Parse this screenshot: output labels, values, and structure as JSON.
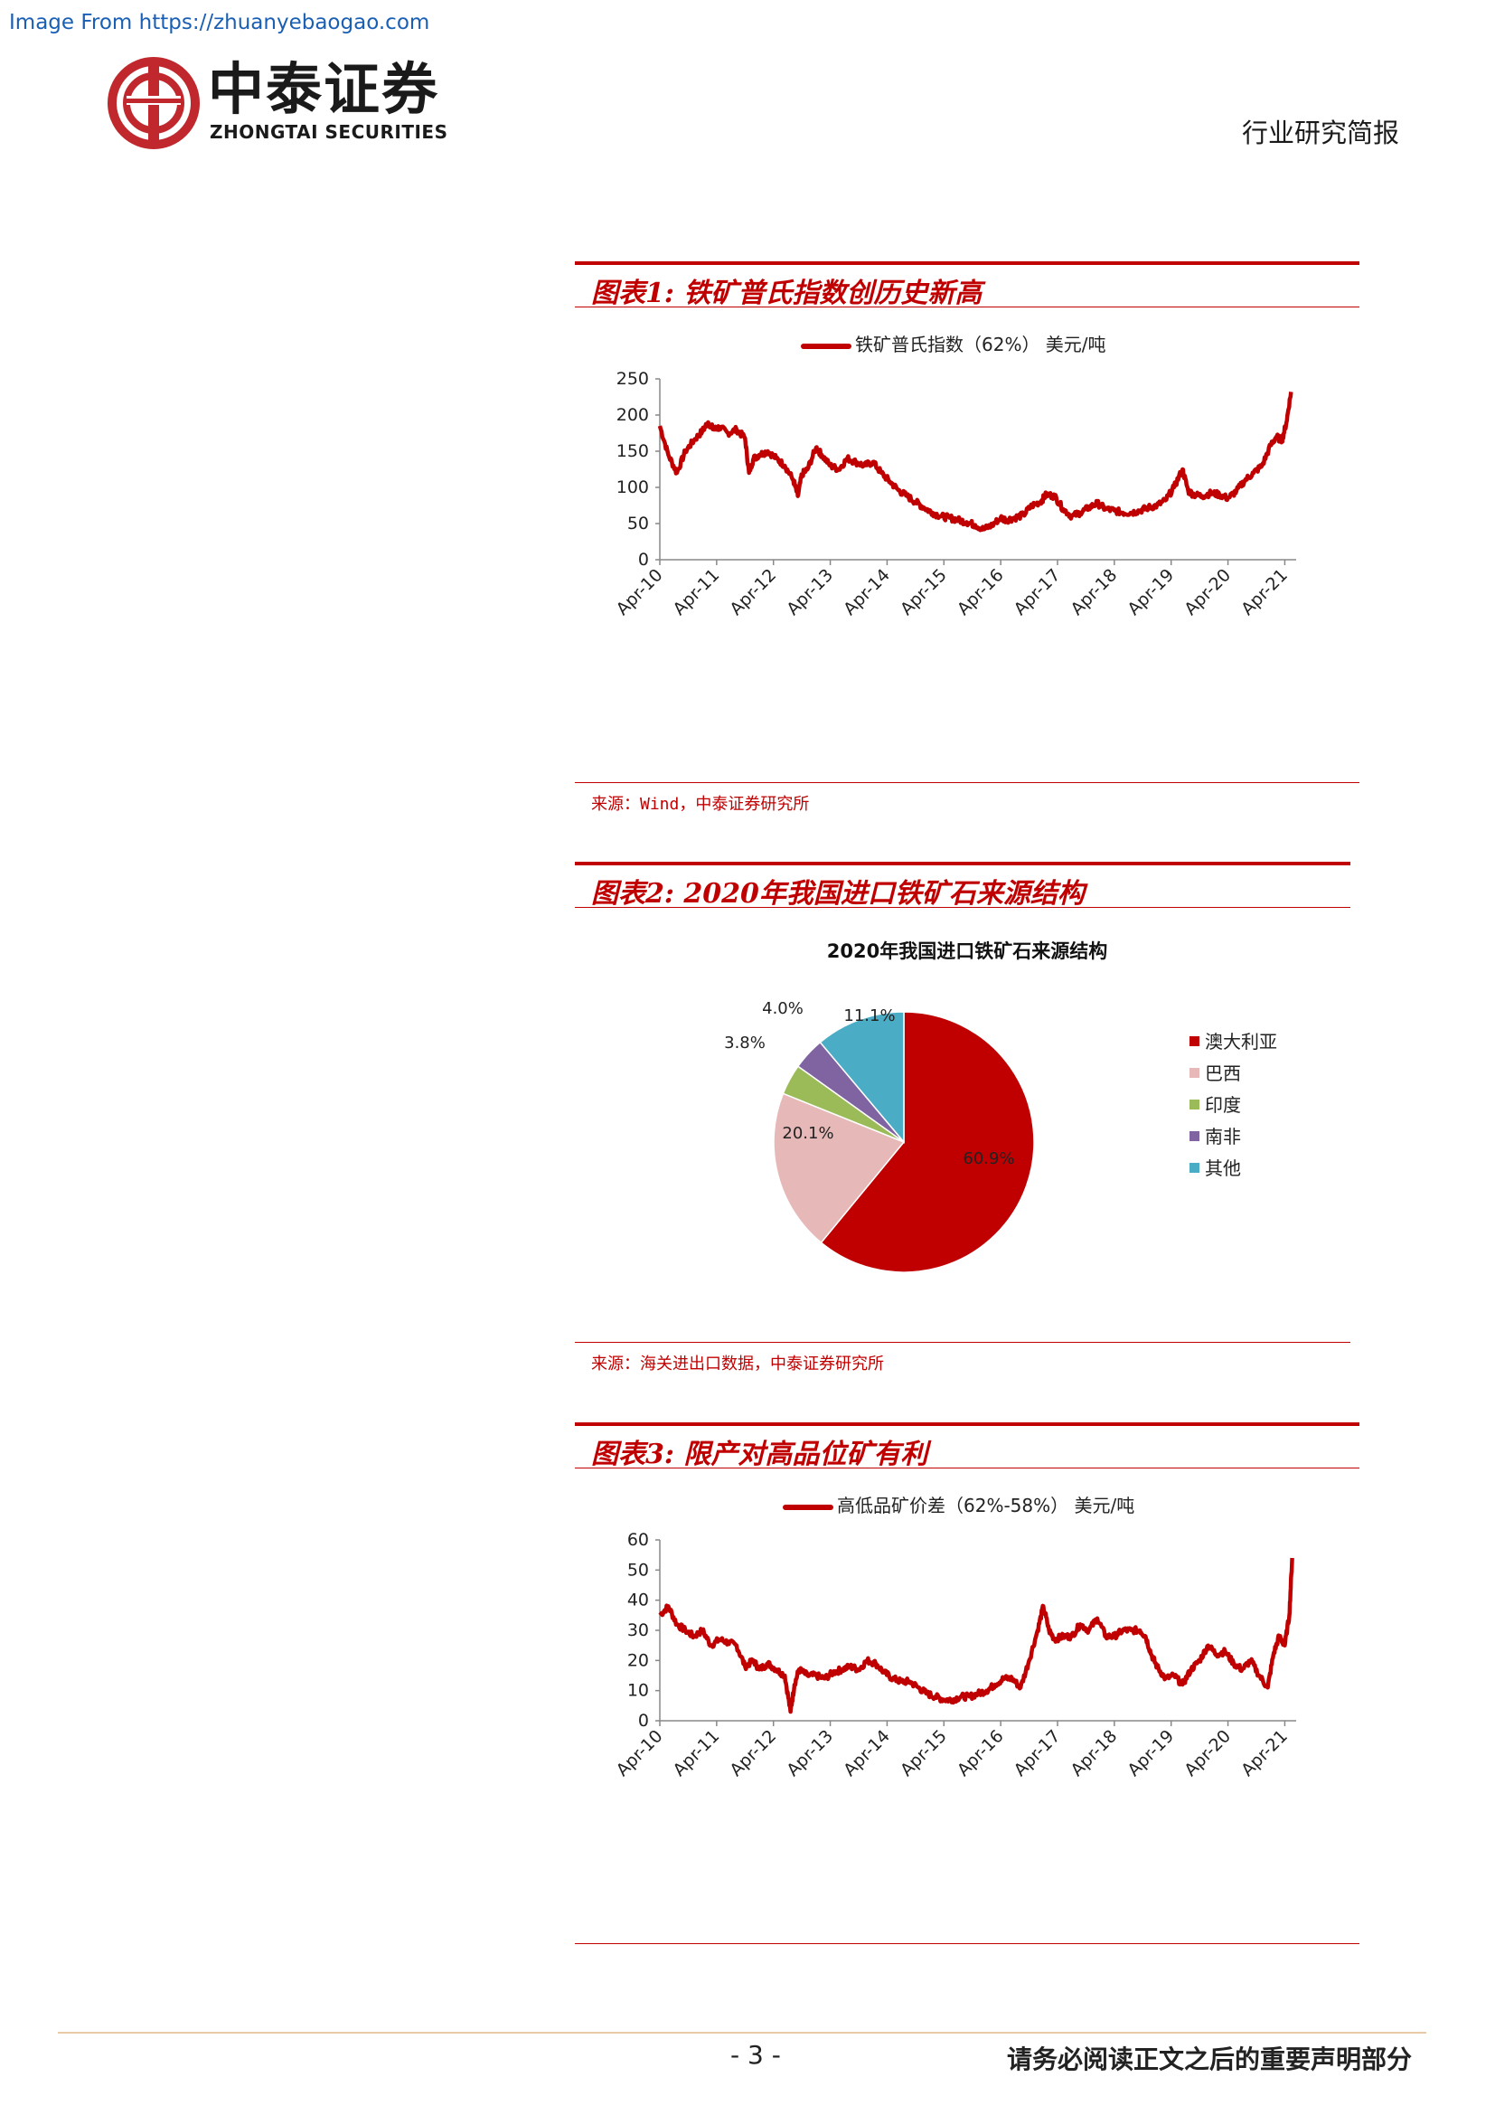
{
  "watermark": "Image From https://zhuanyebaogao.com",
  "logo": {
    "cn": "中泰证券",
    "en": "ZHONGTAI SECURITIES"
  },
  "header_right": "行业研究简报",
  "figures": [
    {
      "title": "图表1: 铁矿普氏指数创历史新高",
      "source": "来源：Wind，中泰证券研究所"
    },
    {
      "title": "图表2: 2020年我国进口铁矿石来源结构",
      "source": "来源：海关进出口数据，中泰证券研究所"
    },
    {
      "title": "图表3: 限产对高品位矿有利",
      "source": ""
    }
  ],
  "footer": {
    "page": "- 3 -",
    "notice": "请务必阅读正文之后的重要声明部分"
  },
  "colors": {
    "accent": "#c00000",
    "series": "#c00000",
    "footer_line": "#e8c9a8"
  },
  "chart_data": [
    {
      "type": "line",
      "title": "",
      "series": [
        {
          "name": "铁矿普氏指数（62%） 美元/吨",
          "x": [
            2010.25,
            2010.4,
            2010.55,
            2010.7,
            2010.85,
            2011.0,
            2011.1,
            2011.2,
            2011.3,
            2011.45,
            2011.6,
            2011.75,
            2011.82,
            2011.9,
            2012.0,
            2012.15,
            2012.3,
            2012.45,
            2012.6,
            2012.68,
            2012.75,
            2012.85,
            2013.0,
            2013.1,
            2013.25,
            2013.4,
            2013.55,
            2013.7,
            2013.85,
            2014.0,
            2014.15,
            2014.3,
            2014.45,
            2014.6,
            2014.75,
            2014.9,
            2015.05,
            2015.2,
            2015.35,
            2015.5,
            2015.65,
            2015.8,
            2015.95,
            2016.1,
            2016.25,
            2016.35,
            2016.5,
            2016.65,
            2016.8,
            2016.95,
            2017.05,
            2017.2,
            2017.35,
            2017.5,
            2017.65,
            2017.8,
            2017.95,
            2018.1,
            2018.25,
            2018.4,
            2018.55,
            2018.7,
            2018.85,
            2019.0,
            2019.15,
            2019.3,
            2019.45,
            2019.55,
            2019.65,
            2019.8,
            2019.95,
            2020.1,
            2020.25,
            2020.4,
            2020.55,
            2020.7,
            2020.85,
            2021.0,
            2021.1,
            2021.2,
            2021.28,
            2021.36
          ],
          "values": [
            185,
            145,
            120,
            150,
            165,
            178,
            190,
            180,
            183,
            175,
            180,
            168,
            120,
            140,
            145,
            150,
            140,
            130,
            110,
            88,
            118,
            125,
            155,
            145,
            130,
            125,
            140,
            135,
            130,
            135,
            120,
            108,
            96,
            88,
            80,
            72,
            65,
            60,
            58,
            55,
            52,
            48,
            42,
            48,
            58,
            55,
            58,
            62,
            75,
            80,
            90,
            88,
            70,
            60,
            65,
            72,
            78,
            70,
            68,
            65,
            65,
            68,
            72,
            75,
            82,
            100,
            125,
            95,
            90,
            88,
            92,
            90,
            85,
            95,
            110,
            120,
            130,
            158,
            170,
            165,
            190,
            232
          ]
        }
      ],
      "xticks": [
        "Apr-10",
        "Apr-11",
        "Apr-12",
        "Apr-13",
        "Apr-14",
        "Apr-15",
        "Apr-16",
        "Apr-17",
        "Apr-18",
        "Apr-19",
        "Apr-20",
        "Apr-21"
      ],
      "yticks": [
        "0",
        "50",
        "100",
        "150",
        "200",
        "250"
      ],
      "xlim": [
        2010.25,
        2021.45
      ],
      "ylim": [
        0,
        250
      ],
      "grid": false,
      "legend": "top"
    },
    {
      "type": "pie",
      "title": "2020年我国进口铁矿石来源结构",
      "categories": [
        "澳大利亚",
        "巴西",
        "印度",
        "南非",
        "其他"
      ],
      "values": [
        60.9,
        20.1,
        3.8,
        4.0,
        11.1
      ],
      "labels": [
        "60.9%",
        "20.1%",
        "3.8%",
        "4.0%",
        "11.1%"
      ],
      "colors": [
        "#c00000",
        "#e6b9b8",
        "#9bbb59",
        "#8064a2",
        "#4bacc6"
      ],
      "legend": "right"
    },
    {
      "type": "line",
      "title": "",
      "series": [
        {
          "name": "高低品矿价差（62%-58%） 美元/吨",
          "x": [
            2010.25,
            2010.4,
            2010.55,
            2010.7,
            2010.85,
            2011.0,
            2011.15,
            2011.3,
            2011.45,
            2011.6,
            2011.75,
            2011.9,
            2012.0,
            2012.15,
            2012.3,
            2012.45,
            2012.55,
            2012.62,
            2012.7,
            2012.85,
            2013.0,
            2013.15,
            2013.3,
            2013.45,
            2013.6,
            2013.75,
            2013.9,
            2014.05,
            2014.2,
            2014.35,
            2014.5,
            2014.65,
            2014.8,
            2014.95,
            2015.1,
            2015.25,
            2015.4,
            2015.55,
            2015.7,
            2015.85,
            2016.0,
            2016.15,
            2016.3,
            2016.45,
            2016.6,
            2016.75,
            2016.9,
            2017.0,
            2017.1,
            2017.2,
            2017.35,
            2017.5,
            2017.65,
            2017.8,
            2017.95,
            2018.1,
            2018.25,
            2018.4,
            2018.55,
            2018.7,
            2018.8,
            2018.9,
            2019.0,
            2019.15,
            2019.3,
            2019.45,
            2019.6,
            2019.75,
            2019.9,
            2020.05,
            2020.2,
            2020.35,
            2020.5,
            2020.65,
            2020.8,
            2020.95,
            2021.05,
            2021.15,
            2021.25,
            2021.33,
            2021.38
          ],
          "values": [
            35,
            38,
            32,
            30,
            28,
            30,
            25,
            27,
            26,
            25,
            18,
            20,
            17,
            19,
            17,
            15,
            3,
            12,
            17,
            15,
            15,
            14,
            16,
            17,
            18,
            17,
            20,
            19,
            16,
            14,
            13,
            13,
            11,
            9,
            8,
            7,
            7,
            8,
            8,
            9,
            10,
            12,
            14,
            14,
            11,
            20,
            30,
            38,
            30,
            27,
            28,
            28,
            32,
            30,
            34,
            28,
            28,
            30,
            30,
            30,
            28,
            22,
            18,
            14,
            15,
            12,
            17,
            20,
            25,
            22,
            23,
            19,
            17,
            20,
            15,
            11,
            22,
            28,
            25,
            35,
            54
          ]
        }
      ],
      "xticks": [
        "Apr-10",
        "Apr-11",
        "Apr-12",
        "Apr-13",
        "Apr-14",
        "Apr-15",
        "Apr-16",
        "Apr-17",
        "Apr-18",
        "Apr-19",
        "Apr-20",
        "Apr-21"
      ],
      "yticks": [
        "0",
        "10",
        "20",
        "30",
        "40",
        "50",
        "60"
      ],
      "xlim": [
        2010.25,
        2021.45
      ],
      "ylim": [
        0,
        60
      ],
      "grid": false,
      "legend": "top"
    }
  ]
}
